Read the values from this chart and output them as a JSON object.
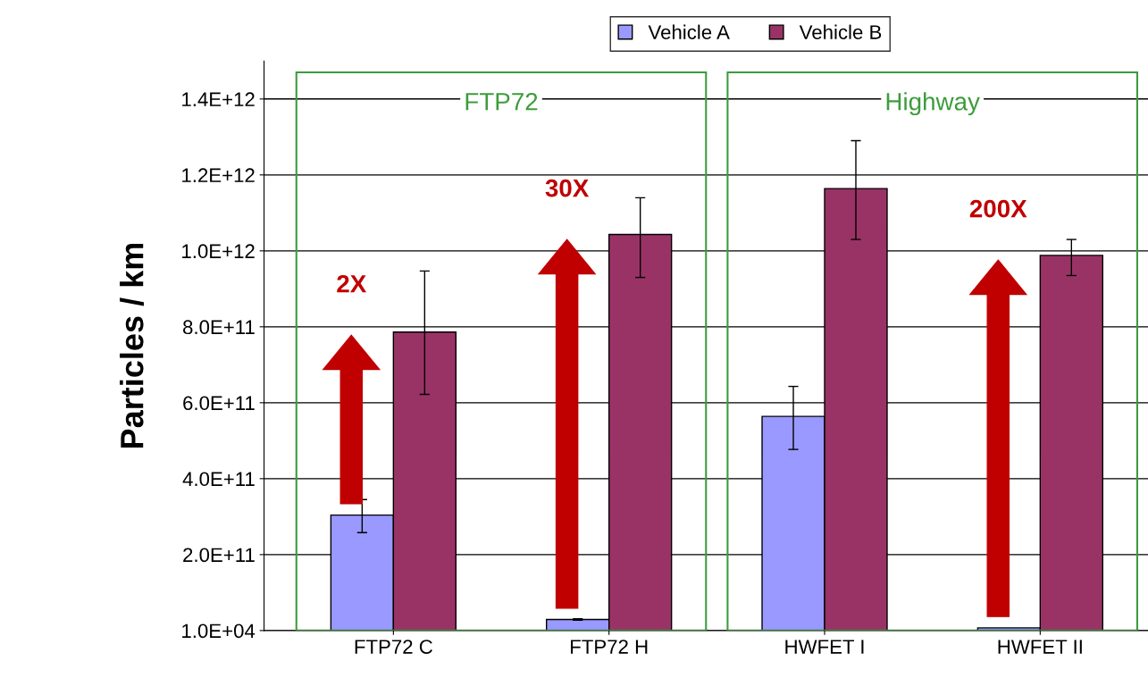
{
  "chart_data": {
    "type": "bar",
    "ylabel": "Particles / km",
    "categories": [
      "FTP72 C",
      "FTP72 H",
      "HWFET I",
      "HWFET II"
    ],
    "series": [
      {
        "name": "Vehicle A",
        "color": "#9999ff",
        "values": [
          304000000000.0,
          29000000000.0,
          564000000000.0,
          7000000000.0
        ],
        "errors": [
          [
            258000000000.0,
            345000000000.0
          ],
          [
            27000000000.0,
            31000000000.0
          ],
          [
            477000000000.0,
            643000000000.0
          ],
          null
        ]
      },
      {
        "name": "Vehicle B",
        "color": "#993366",
        "values": [
          786000000000.0,
          1043000000000.0,
          1164000000000.0,
          988000000000.0
        ],
        "errors": [
          [
            622000000000.0,
            947000000000.0
          ],
          [
            930000000000.0,
            1140000000000.0
          ],
          [
            1030000000000.0,
            1290000000000.0
          ],
          [
            935000000000.0,
            1030000000000.0
          ]
        ]
      }
    ],
    "ylim": [
      10000,
      1500000000000.0
    ],
    "yticks": [
      {
        "value": 10000,
        "label": "1.0E+04"
      },
      {
        "value": 200000000000.0,
        "label": "2.0E+11"
      },
      {
        "value": 400000000000.0,
        "label": "4.0E+11"
      },
      {
        "value": 600000000000.0,
        "label": "6.0E+11"
      },
      {
        "value": 800000000000.0,
        "label": "8.0E+11"
      },
      {
        "value": 1000000000000.0,
        "label": "1.0E+12"
      },
      {
        "value": 1200000000000.0,
        "label": "1.2E+12"
      },
      {
        "value": 1400000000000.0,
        "label": "1.4E+12"
      }
    ],
    "grid": "y",
    "legend": "top",
    "annotations": [
      "FTP72",
      "Highway",
      "2X",
      "30X",
      "200X"
    ]
  }
}
